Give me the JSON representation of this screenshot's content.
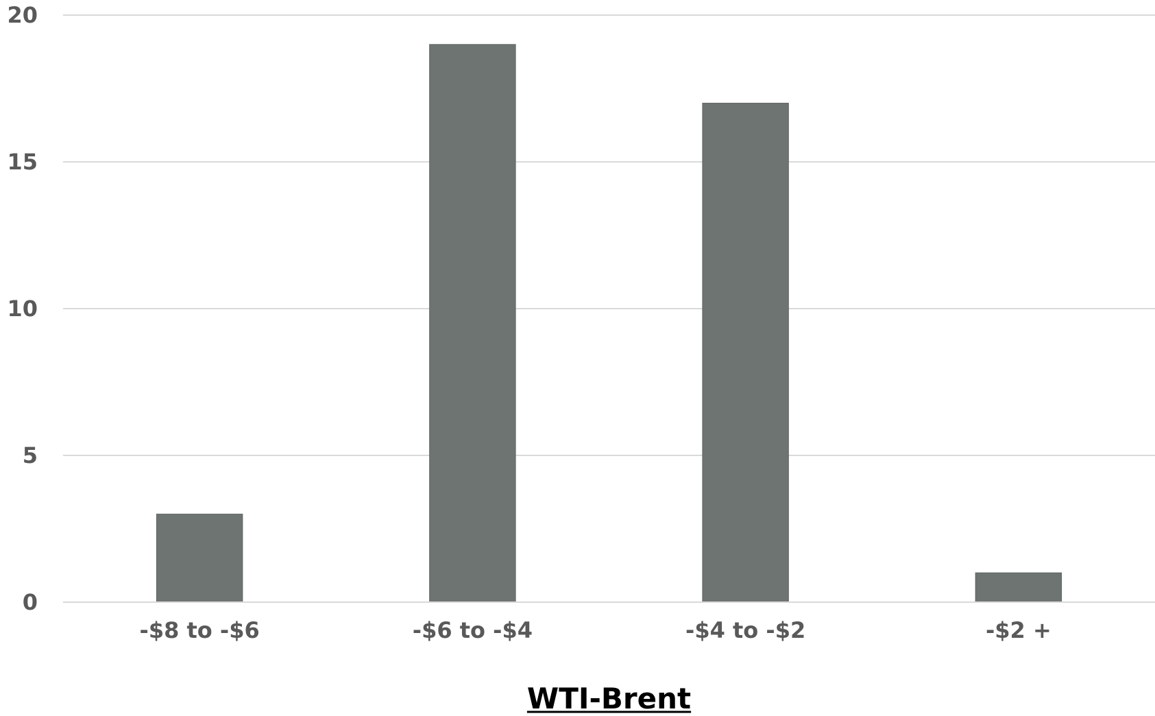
{
  "chart_data": {
    "type": "bar",
    "categories": [
      "-$8 to -$6",
      "-$6 to -$4",
      "-$4 to -$2",
      "-$2 +"
    ],
    "values": [
      3,
      19,
      17,
      1
    ],
    "title": "",
    "xlabel": "WTI-Brent",
    "ylabel": "",
    "ylim": [
      0,
      20
    ],
    "yticks": [
      0,
      5,
      10,
      15,
      20
    ],
    "grid": true,
    "legend": "none",
    "bar_color": "#6e7471"
  }
}
